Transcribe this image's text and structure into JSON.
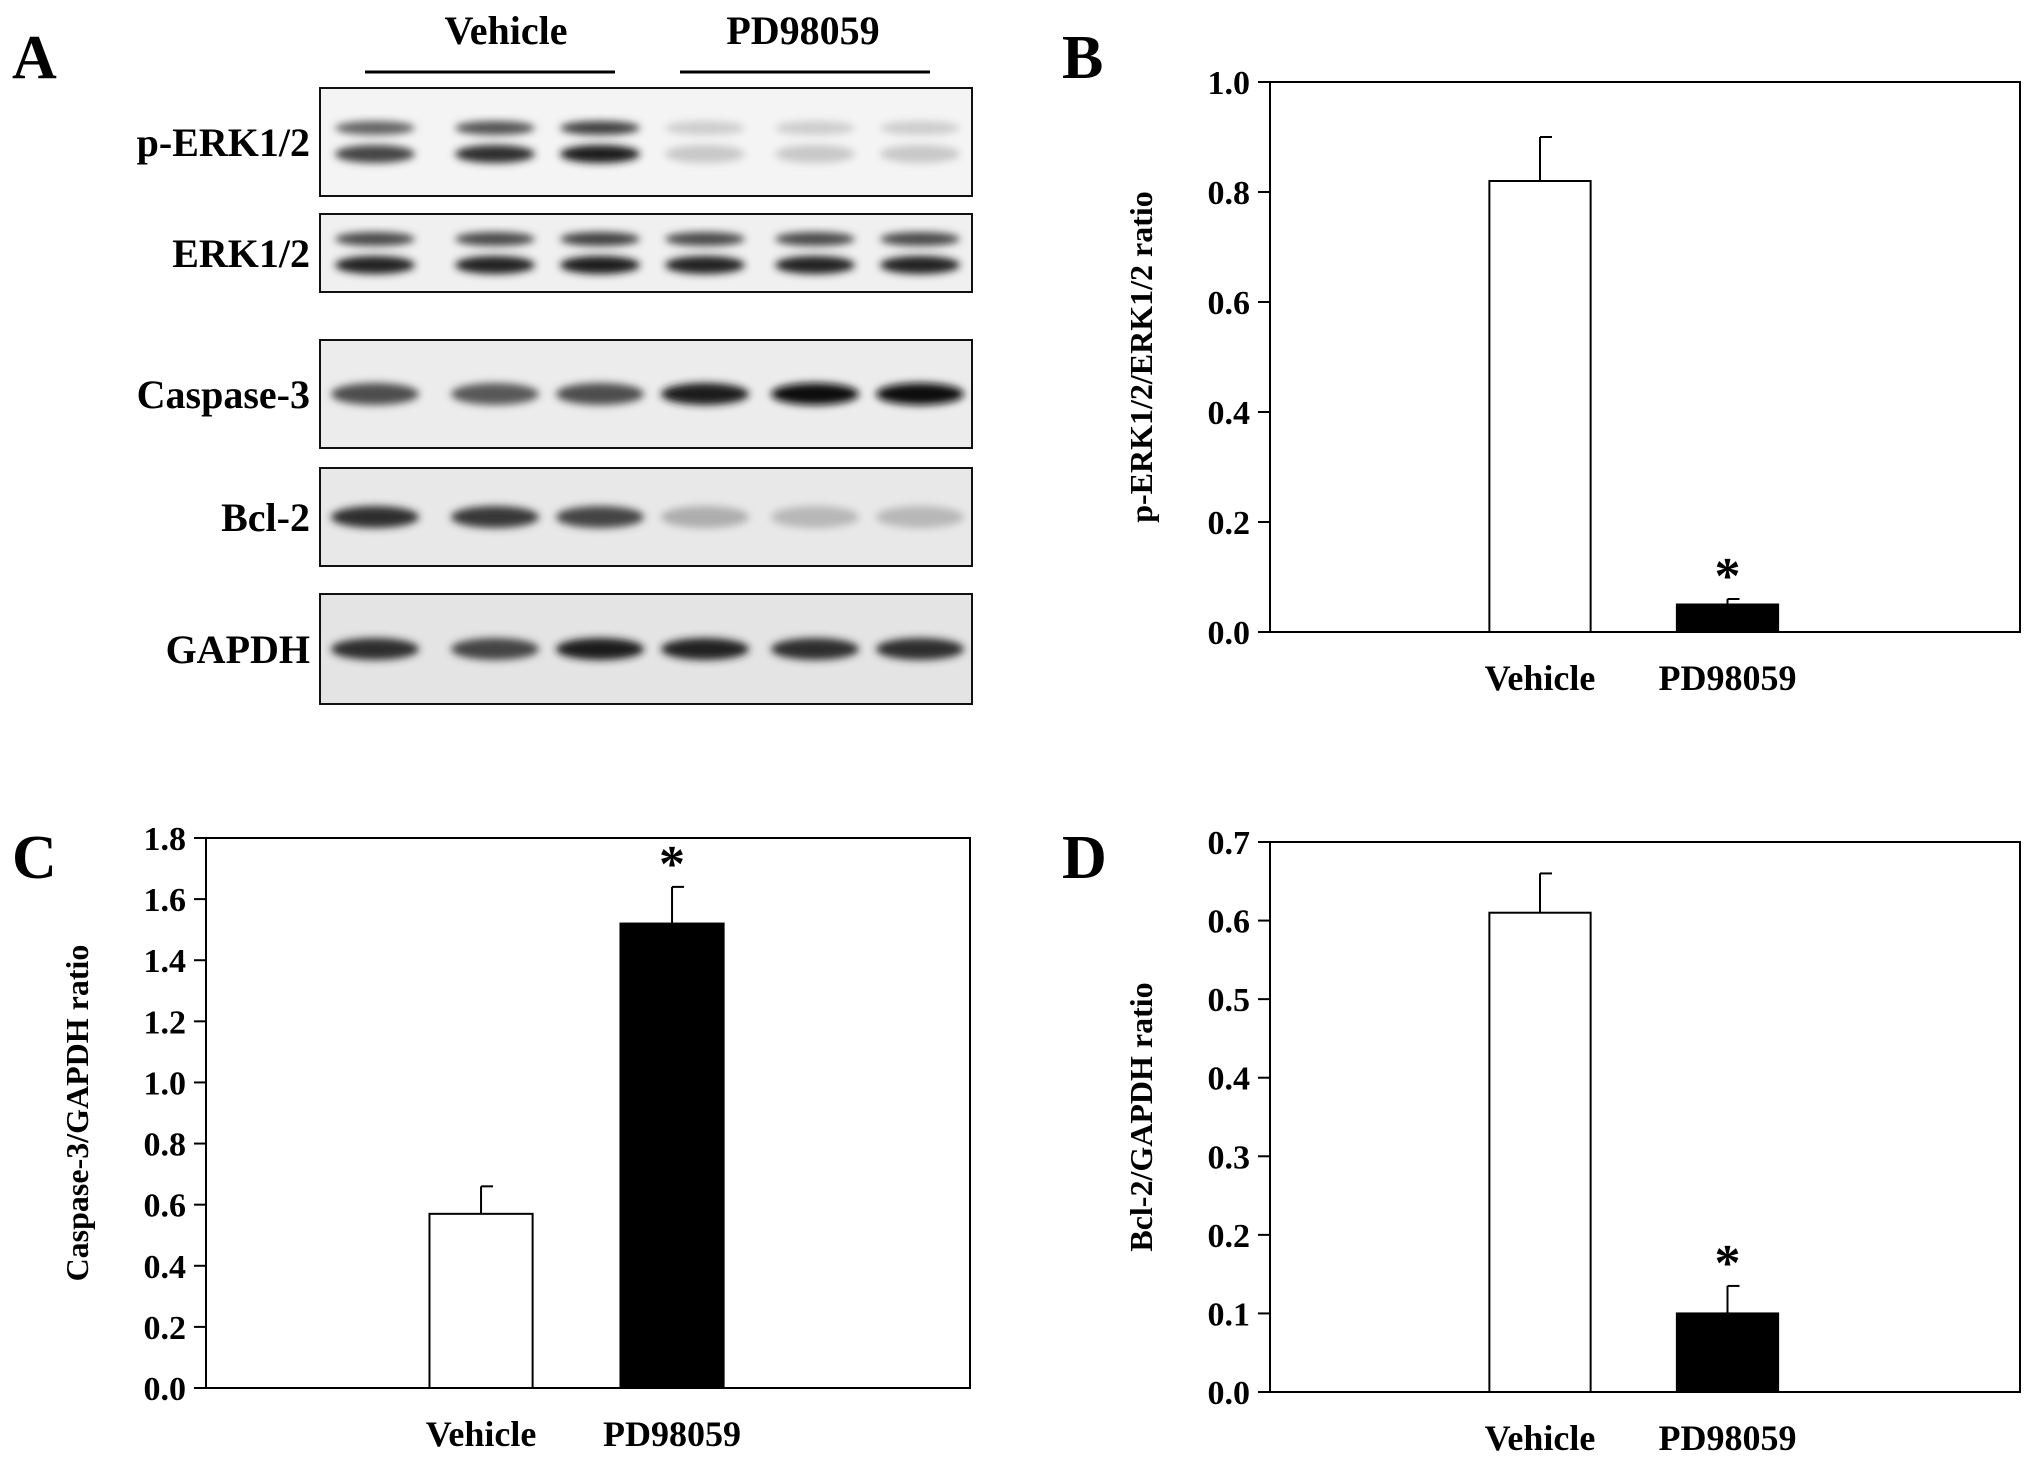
{
  "blot": {
    "panel_letter": "A",
    "groups": [
      "Vehicle",
      "PD98059"
    ],
    "rows": [
      {
        "label": "p-ERK1/2",
        "lanes": [
          0.75,
          0.85,
          0.95,
          0.12,
          0.12,
          0.12
        ],
        "double": true
      },
      {
        "label": "ERK1/2",
        "lanes": [
          0.9,
          0.9,
          0.95,
          0.9,
          0.9,
          0.9
        ],
        "double": true
      },
      {
        "label": "Caspase-3",
        "lanes": [
          0.7,
          0.65,
          0.7,
          0.95,
          1.0,
          1.0
        ],
        "double": false
      },
      {
        "label": "Bcl-2",
        "lanes": [
          0.85,
          0.8,
          0.75,
          0.25,
          0.2,
          0.2
        ],
        "double": false
      },
      {
        "label": "GAPDH",
        "lanes": [
          0.85,
          0.75,
          0.95,
          0.9,
          0.85,
          0.85
        ],
        "double": false
      }
    ]
  },
  "chart_data": [
    {
      "panel_letter": "B",
      "type": "bar",
      "categories": [
        "Vehicle",
        "PD98059"
      ],
      "values": [
        0.82,
        0.05
      ],
      "errors": [
        0.08,
        0.01
      ],
      "colors": [
        "#ffffff",
        "#000000"
      ],
      "significance": [
        "",
        "*"
      ],
      "ylabel": "p-ERK1/2/ERK1/2 ratio",
      "ylim": [
        0,
        1.0
      ],
      "yticks": [
        "0.0",
        "0.2",
        "0.4",
        "0.6",
        "0.8",
        "1.0"
      ],
      "grid": false
    },
    {
      "panel_letter": "C",
      "type": "bar",
      "categories": [
        "Vehicle",
        "PD98059"
      ],
      "values": [
        0.57,
        1.52
      ],
      "errors": [
        0.09,
        0.12
      ],
      "colors": [
        "#ffffff",
        "#000000"
      ],
      "significance": [
        "",
        "*"
      ],
      "ylabel": "Caspase-3/GAPDH ratio",
      "ylim": [
        0,
        1.8
      ],
      "yticks": [
        "0.0",
        "0.2",
        "0.4",
        "0.6",
        "0.8",
        "1.0",
        "1.2",
        "1.4",
        "1.6",
        "1.8"
      ],
      "grid": false
    },
    {
      "panel_letter": "D",
      "type": "bar",
      "categories": [
        "Vehicle",
        "PD98059"
      ],
      "values": [
        0.61,
        0.1
      ],
      "errors": [
        0.05,
        0.035
      ],
      "colors": [
        "#ffffff",
        "#000000"
      ],
      "significance": [
        "",
        "*"
      ],
      "ylabel": "Bcl-2/GAPDH ratio",
      "ylim": [
        0,
        0.7
      ],
      "yticks": [
        "0.0",
        "0.1",
        "0.2",
        "0.3",
        "0.4",
        "0.5",
        "0.6",
        "0.7"
      ],
      "grid": false
    }
  ]
}
